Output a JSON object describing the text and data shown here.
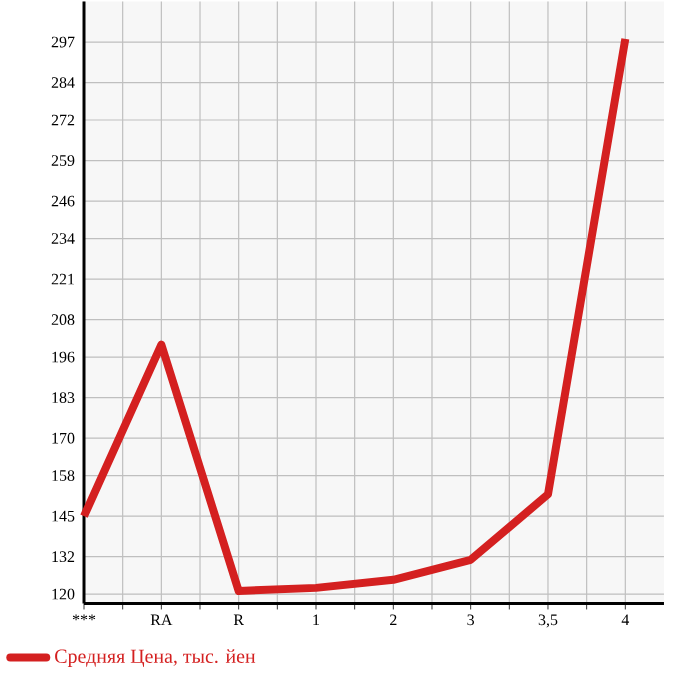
{
  "chart_data": {
    "type": "line",
    "categories": [
      "***",
      "RA",
      "R",
      "1",
      "2",
      "3",
      "3,5",
      "4"
    ],
    "series": [
      {
        "name": "Средняя Цена, тыс. йен",
        "color": "#d42020",
        "values": [
          145,
          200,
          121,
          122,
          124.6,
          131,
          152,
          298
        ]
      }
    ],
    "ylim": [
      117,
      310
    ],
    "yticks": [
      120,
      132,
      145,
      158,
      170,
      183,
      196,
      208,
      221,
      234,
      246,
      259,
      272,
      284,
      297
    ],
    "grid": true,
    "legend": "bottom left",
    "marker": "none",
    "line_style": "solid"
  }
}
